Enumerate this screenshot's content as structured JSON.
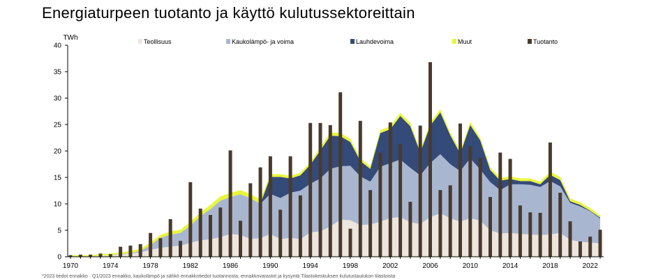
{
  "chart_data": {
    "type": "area",
    "title": "Energiaturpeen tuotanto ja käyttö kulutussektoreittain",
    "ylabel": "TWh",
    "xlabel": "",
    "ylim": [
      0,
      40
    ],
    "yticks": [
      "0",
      "5",
      "10",
      "15",
      "20",
      "25",
      "30",
      "35",
      "40"
    ],
    "x_tick_labels": [
      "1970",
      "1974",
      "1978",
      "1982",
      "1986",
      "1990",
      "1994",
      "1998",
      "2002",
      "2006",
      "2010",
      "2014",
      "2018",
      "2022"
    ],
    "x": [
      1970,
      1971,
      1972,
      1973,
      1974,
      1975,
      1976,
      1977,
      1978,
      1979,
      1980,
      1981,
      1982,
      1983,
      1984,
      1985,
      1986,
      1987,
      1988,
      1989,
      1990,
      1991,
      1992,
      1993,
      1994,
      1995,
      1996,
      1997,
      1998,
      1999,
      2000,
      2001,
      2002,
      2003,
      2004,
      2005,
      2006,
      2007,
      2008,
      2009,
      2010,
      2011,
      2012,
      2013,
      2014,
      2015,
      2016,
      2017,
      2018,
      2019,
      2020,
      2021,
      2022,
      2023
    ],
    "legend_position": "top",
    "grid": false,
    "series": [
      {
        "name": "Teollisuus",
        "kind": "area",
        "color": "#ede6df",
        "values": [
          0.1,
          0.1,
          0.1,
          0.2,
          0.3,
          0.4,
          0.6,
          0.8,
          1.3,
          1.7,
          1.9,
          2.1,
          2.6,
          3.1,
          3.3,
          3.7,
          4.3,
          4.1,
          3.4,
          3.5,
          4.3,
          3.3,
          3.6,
          3.3,
          4.6,
          4.8,
          5.7,
          7.0,
          6.9,
          6.0,
          6.1,
          6.6,
          7.3,
          7.5,
          6.5,
          6.2,
          7.5,
          8.2,
          7.3,
          6.6,
          7.3,
          6.8,
          5.0,
          4.4,
          4.5,
          4.3,
          4.2,
          4.1,
          4.2,
          4.5,
          3.2,
          2.8,
          2.7,
          2.5
        ]
      },
      {
        "name": "Kaukolämpö- ja voima",
        "kind": "area",
        "color": "#a8b6d0",
        "values": [
          0.0,
          0.0,
          0.0,
          0.0,
          0.0,
          0.1,
          0.1,
          0.3,
          0.9,
          1.9,
          2.3,
          2.4,
          3.3,
          4.6,
          5.7,
          6.9,
          7.0,
          7.7,
          7.7,
          6.5,
          7.6,
          7.8,
          8.5,
          9.2,
          9.2,
          10.0,
          10.9,
          10.1,
          10.3,
          9.2,
          8.1,
          10.4,
          10.4,
          10.9,
          10.3,
          9.2,
          10.2,
          11.2,
          10.2,
          9.6,
          11.3,
          9.7,
          9.1,
          8.2,
          9.2,
          9.4,
          9.4,
          9.1,
          10.1,
          8.8,
          7.0,
          6.7,
          5.9,
          4.7
        ]
      },
      {
        "name": "Lauhdevoima",
        "kind": "area",
        "color": "#344a78",
        "values": [
          0.0,
          0.0,
          0.0,
          0.0,
          0.0,
          0.0,
          0.0,
          0.0,
          0.0,
          0.0,
          0.0,
          0.0,
          0.0,
          0.0,
          0.0,
          0.0,
          0.0,
          0.0,
          0.0,
          0.0,
          3.2,
          4.0,
          2.7,
          2.9,
          3.6,
          5.3,
          6.3,
          5.7,
          4.5,
          2.9,
          2.4,
          6.4,
          6.4,
          8.2,
          7.9,
          4.3,
          7.1,
          7.9,
          5.5,
          3.3,
          6.3,
          5.5,
          2.3,
          1.8,
          1.0,
          0.6,
          0.7,
          0.5,
          1.2,
          1.2,
          0.3,
          0.3,
          0.1,
          0.2
        ]
      },
      {
        "name": "Muut",
        "kind": "area",
        "color": "#e8f53a",
        "values": [
          0.2,
          0.2,
          0.2,
          0.3,
          0.3,
          0.3,
          0.4,
          0.4,
          0.5,
          0.5,
          0.6,
          0.6,
          0.7,
          0.7,
          0.8,
          0.8,
          0.8,
          0.8,
          0.8,
          0.8,
          0.5,
          0.5,
          0.5,
          0.5,
          0.5,
          0.6,
          0.6,
          0.6,
          0.6,
          0.5,
          0.5,
          0.5,
          0.6,
          0.6,
          0.6,
          0.5,
          0.6,
          0.6,
          0.5,
          0.5,
          0.6,
          0.5,
          0.5,
          0.5,
          0.5,
          0.5,
          0.5,
          0.5,
          0.6,
          0.6,
          0.5,
          0.5,
          0.5,
          0.4
        ]
      },
      {
        "name": "Tuotanto",
        "kind": "bar",
        "color": "#4a3a2c",
        "values": [
          0.3,
          0.4,
          0.4,
          0.6,
          0.5,
          1.9,
          2.1,
          2.4,
          4.5,
          3.5,
          7.1,
          3.0,
          14.1,
          9.1,
          7.9,
          9.3,
          20.1,
          6.8,
          13.9,
          16.9,
          19.0,
          8.9,
          19.0,
          11.6,
          25.3,
          25.3,
          24.9,
          31.1,
          5.3,
          25.7,
          12.6,
          19.7,
          25.4,
          21.3,
          10.4,
          24.8,
          36.8,
          12.6,
          13.5,
          25.2,
          20.9,
          18.7,
          11.3,
          19.7,
          18.5,
          9.7,
          8.4,
          8.3,
          21.6,
          12.1,
          6.7,
          2.9,
          3.8,
          5.1
        ]
      }
    ]
  },
  "footnote": "*2023 tiedot ennakko · Q1/2023 ennakko, kaukolämpö ja sähkö ennakkotiedot tuotannosta, ennakkovarastot ja kysyntä Tilastokeskuksen kulutustaulukon tilastoista"
}
